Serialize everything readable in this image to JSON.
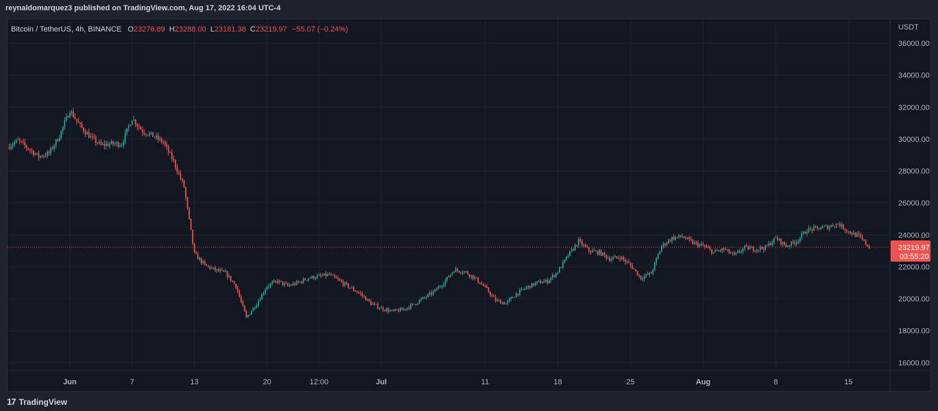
{
  "header": {
    "published": "reynaldomarquez3 published on TradingView.com, Aug 17, 2022 16:04 UTC-4"
  },
  "legend": {
    "symbol": "Bitcoin / TetherUS, 4h, BINANCE",
    "open_label": "O",
    "open": "23276.89",
    "high_label": "H",
    "high": "23288.00",
    "low_label": "L",
    "low": "23181.38",
    "close_label": "C",
    "close": "23219.97",
    "change": "−55.07 (−0.24%)"
  },
  "price_badge": {
    "price": "23219.97",
    "countdown": "03:55:20"
  },
  "footer": {
    "brand": "TradingView",
    "logo": "17"
  },
  "colors": {
    "up": "#26a69a",
    "down": "#ef5350",
    "background": "#131722",
    "grid": "#1f2330",
    "text": "#b2b5be"
  },
  "chart_data": {
    "type": "candlestick",
    "currency": "USDT",
    "last_price": 23219.97,
    "ylim": [
      15500,
      37500
    ],
    "y_ticks": [
      16000,
      18000,
      20000,
      22000,
      24000,
      26000,
      28000,
      30000,
      32000,
      34000,
      36000
    ],
    "y_tick_labels": [
      "16000.00",
      "18000.00",
      "20000.00",
      "22000.00",
      "24000.00",
      "26000.00",
      "28000.00",
      "30000.00",
      "32000.00",
      "34000.00",
      "36000.00"
    ],
    "x_range": [
      "2022-05-26",
      "2022-08-19"
    ],
    "x_ticks": [
      {
        "date": "2022-06-01",
        "label": "Jun",
        "bold": true
      },
      {
        "date": "2022-06-07",
        "label": "7",
        "bold": false
      },
      {
        "date": "2022-06-13",
        "label": "13",
        "bold": false
      },
      {
        "date": "2022-06-20",
        "label": "20",
        "bold": false
      },
      {
        "date": "2022-06-25",
        "label": "12:00",
        "bold": false
      },
      {
        "date": "2022-07-01",
        "label": "Jul",
        "bold": true
      },
      {
        "date": "2022-07-11",
        "label": "11",
        "bold": false
      },
      {
        "date": "2022-07-18",
        "label": "18",
        "bold": false
      },
      {
        "date": "2022-07-25",
        "label": "25",
        "bold": false
      },
      {
        "date": "2022-08-01",
        "label": "Aug",
        "bold": true
      },
      {
        "date": "2022-08-08",
        "label": "8",
        "bold": false
      },
      {
        "date": "2022-08-15",
        "label": "15",
        "bold": false
      }
    ],
    "price_path": [
      [
        "2022-05-26",
        29500
      ],
      [
        "2022-05-27",
        29900
      ],
      [
        "2022-05-28",
        29400
      ],
      [
        "2022-05-29",
        28900
      ],
      [
        "2022-05-30",
        29100
      ],
      [
        "2022-05-31",
        30200
      ],
      [
        "2022-06-01",
        31800
      ],
      [
        "2022-06-02",
        30800
      ],
      [
        "2022-06-03",
        30100
      ],
      [
        "2022-06-04",
        29600
      ],
      [
        "2022-06-05",
        29700
      ],
      [
        "2022-06-06",
        29700
      ],
      [
        "2022-06-07",
        31300
      ],
      [
        "2022-06-08",
        30500
      ],
      [
        "2022-06-09",
        30200
      ],
      [
        "2022-06-10",
        29800
      ],
      [
        "2022-06-11",
        28600
      ],
      [
        "2022-06-12",
        27000
      ],
      [
        "2022-06-13",
        22800
      ],
      [
        "2022-06-14",
        22100
      ],
      [
        "2022-06-15",
        21800
      ],
      [
        "2022-06-16",
        21600
      ],
      [
        "2022-06-17",
        20800
      ],
      [
        "2022-06-18",
        18800
      ],
      [
        "2022-06-19",
        19700
      ],
      [
        "2022-06-20",
        20800
      ],
      [
        "2022-06-21",
        21100
      ],
      [
        "2022-06-22",
        20800
      ],
      [
        "2022-06-23",
        21000
      ],
      [
        "2022-06-24",
        21300
      ],
      [
        "2022-06-25",
        21400
      ],
      [
        "2022-06-26",
        21500
      ],
      [
        "2022-06-27",
        21100
      ],
      [
        "2022-06-28",
        20700
      ],
      [
        "2022-06-29",
        20300
      ],
      [
        "2022-06-30",
        19700
      ],
      [
        "2022-07-01",
        19400
      ],
      [
        "2022-07-02",
        19200
      ],
      [
        "2022-07-03",
        19300
      ],
      [
        "2022-07-04",
        19600
      ],
      [
        "2022-07-05",
        20000
      ],
      [
        "2022-07-06",
        20400
      ],
      [
        "2022-07-07",
        21000
      ],
      [
        "2022-07-08",
        21800
      ],
      [
        "2022-07-09",
        21700
      ],
      [
        "2022-07-10",
        21300
      ],
      [
        "2022-07-11",
        20700
      ],
      [
        "2022-07-12",
        19900
      ],
      [
        "2022-07-13",
        19700
      ],
      [
        "2022-07-14",
        20300
      ],
      [
        "2022-07-15",
        20700
      ],
      [
        "2022-07-16",
        21000
      ],
      [
        "2022-07-17",
        21100
      ],
      [
        "2022-07-18",
        21700
      ],
      [
        "2022-07-19",
        22700
      ],
      [
        "2022-07-20",
        23600
      ],
      [
        "2022-07-21",
        23000
      ],
      [
        "2022-07-22",
        22900
      ],
      [
        "2022-07-23",
        22500
      ],
      [
        "2022-07-24",
        22600
      ],
      [
        "2022-07-25",
        22100
      ],
      [
        "2022-07-26",
        21300
      ],
      [
        "2022-07-27",
        21600
      ],
      [
        "2022-07-28",
        23300
      ],
      [
        "2022-07-29",
        23800
      ],
      [
        "2022-07-30",
        23900
      ],
      [
        "2022-07-31",
        23500
      ],
      [
        "2022-08-01",
        23300
      ],
      [
        "2022-08-02",
        22900
      ],
      [
        "2022-08-03",
        23100
      ],
      [
        "2022-08-04",
        22700
      ],
      [
        "2022-08-05",
        23200
      ],
      [
        "2022-08-06",
        23100
      ],
      [
        "2022-08-07",
        23200
      ],
      [
        "2022-08-08",
        23800
      ],
      [
        "2022-08-09",
        23300
      ],
      [
        "2022-08-10",
        23600
      ],
      [
        "2022-08-11",
        24300
      ],
      [
        "2022-08-12",
        24400
      ],
      [
        "2022-08-13",
        24500
      ],
      [
        "2022-08-14",
        24700
      ],
      [
        "2022-08-15",
        24200
      ],
      [
        "2022-08-16",
        23900
      ],
      [
        "2022-08-17",
        23220
      ]
    ]
  }
}
